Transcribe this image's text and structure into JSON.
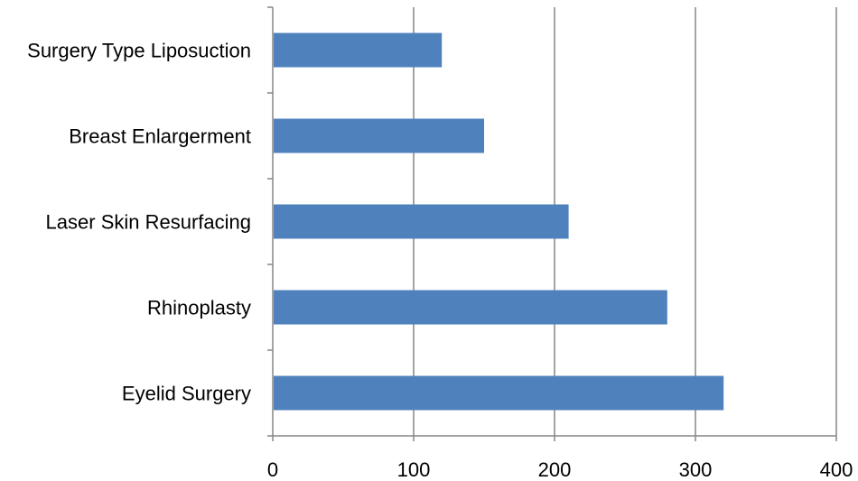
{
  "chart_data": {
    "type": "bar",
    "orientation": "horizontal",
    "categories": [
      "Surgery Type Liposuction",
      "Breast Enlargerment",
      "Laser Skin Resurfacing",
      "Rhinoplasty",
      "Eyelid Surgery"
    ],
    "values": [
      120,
      150,
      210,
      280,
      320
    ],
    "title": "",
    "xlabel": "",
    "ylabel": "",
    "xlim": [
      0,
      400
    ],
    "x_ticks": [
      "0",
      "100",
      "200",
      "300",
      "400"
    ],
    "grid": "vertical",
    "legend": "none",
    "colors": {
      "bar": "#4F81BD",
      "grid": "#868686",
      "axis": "#868686"
    }
  }
}
